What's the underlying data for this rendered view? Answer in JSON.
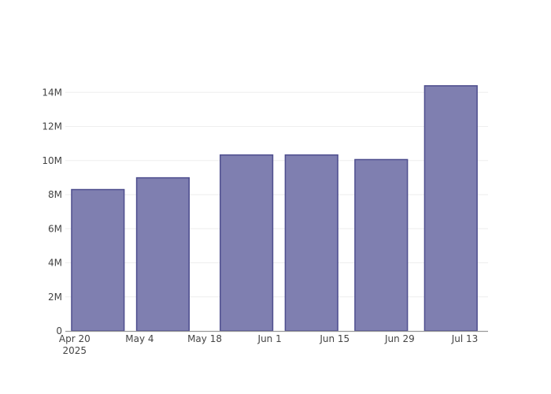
{
  "chart_data": {
    "type": "bar",
    "title": "",
    "xlabel": "",
    "ylabel": "",
    "x": [
      "2025-04-25",
      "2025-05-09",
      "2025-05-27",
      "2025-06-10",
      "2025-06-25",
      "2025-07-10"
    ],
    "values": [
      8300000,
      8990000,
      10330000,
      10330000,
      10060000,
      14390000
    ],
    "xlim": [
      "2025-04-18",
      "2025-07-18"
    ],
    "ylim": [
      0,
      14800000
    ],
    "x_ticks": [
      {
        "date": "2025-04-20",
        "label": "Apr 20",
        "sublabel": "2025"
      },
      {
        "date": "2025-05-04",
        "label": "May 4"
      },
      {
        "date": "2025-05-18",
        "label": "May 18"
      },
      {
        "date": "2025-06-01",
        "label": "Jun 1"
      },
      {
        "date": "2025-06-15",
        "label": "Jun 15"
      },
      {
        "date": "2025-06-29",
        "label": "Jun 29"
      },
      {
        "date": "2025-07-13",
        "label": "Jul 13"
      }
    ],
    "y_ticks": [
      {
        "value": 0,
        "label": "0"
      },
      {
        "value": 2000000,
        "label": "2M"
      },
      {
        "value": 4000000,
        "label": "4M"
      },
      {
        "value": 6000000,
        "label": "6M"
      },
      {
        "value": 8000000,
        "label": "8M"
      },
      {
        "value": 10000000,
        "label": "10M"
      },
      {
        "value": 12000000,
        "label": "12M"
      },
      {
        "value": 14000000,
        "label": "14M"
      }
    ],
    "grid": true,
    "legend": "none",
    "colors": {
      "bar_fill": "#7f7fb0",
      "bar_stroke": "#4e4e8e",
      "grid": "#eeeeee",
      "axis": "#999999"
    }
  }
}
